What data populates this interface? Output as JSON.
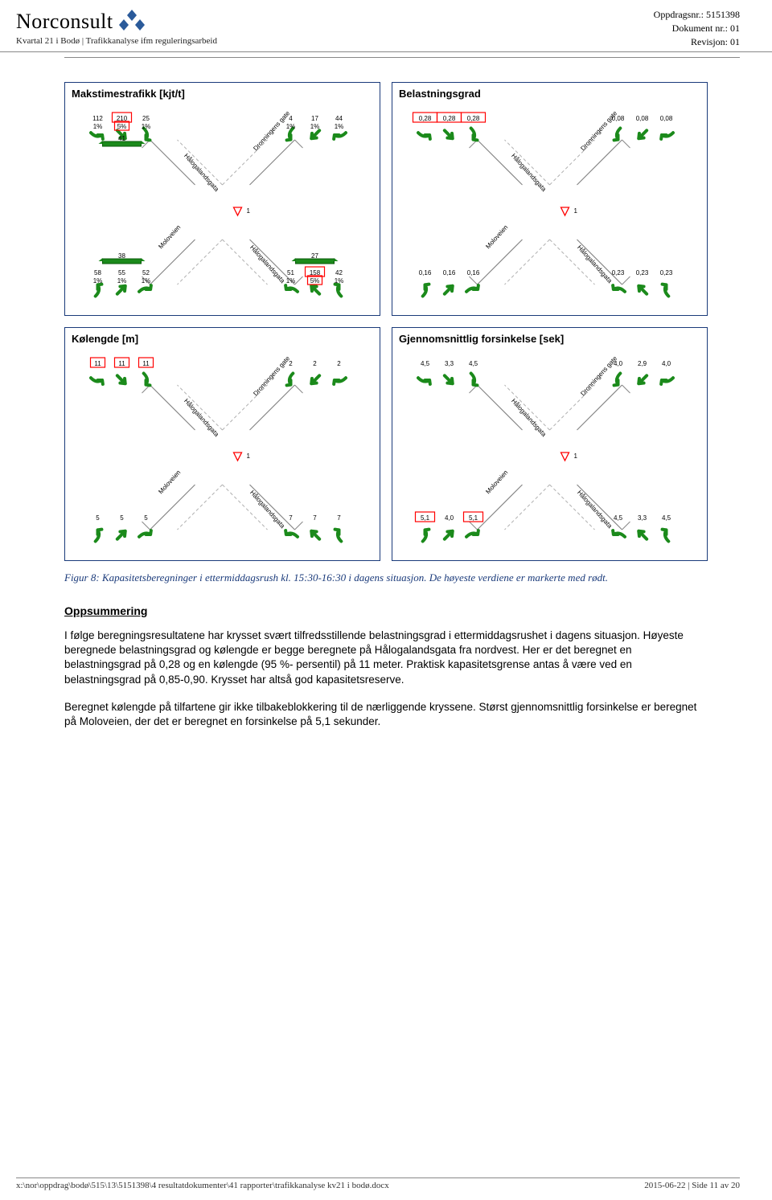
{
  "header": {
    "logo_text": "Norconsult",
    "subtitle": "Kvartal 21 i Bodø | Trafikkanalyse ifm reguleringsarbeid",
    "meta": {
      "oppdrag": "Oppdragsnr.: 5151398",
      "dokument": "Dokument nr.: 01",
      "revisjon": "Revisjon: 01"
    },
    "logo_color": "#2a5a9a"
  },
  "panels": [
    {
      "title": "Makstimestrafikk [kjt/t]",
      "roads": [
        "Hålogalandsgata",
        "Dronningens gate",
        "Moloveien",
        "Hålogalandsgata"
      ],
      "priority": "1",
      "tl": [
        {
          "val": "112",
          "pct": "1%"
        },
        {
          "val": "210",
          "pct": "5%",
          "red": true
        },
        {
          "val": "25",
          "pct": "1%"
        }
      ],
      "tr": [
        {
          "val": "4",
          "pct": "1%"
        },
        {
          "val": "17",
          "pct": "1%"
        },
        {
          "val": "44",
          "pct": "1%"
        }
      ],
      "bl": [
        {
          "val": "58",
          "pct": "1%"
        },
        {
          "val": "55",
          "pct": "1%"
        },
        {
          "val": "52",
          "pct": "1%"
        }
      ],
      "br": [
        {
          "val": "51",
          "pct": "1%"
        },
        {
          "val": "158",
          "pct": "5%",
          "red": true
        },
        {
          "val": "42",
          "pct": "1%"
        }
      ],
      "extra_tl": "41",
      "extra_bl": "38",
      "extra_br": "27"
    },
    {
      "title": "Belastningsgrad",
      "roads": [
        "Hålogalandsgata",
        "Dronningens gate",
        "Moloveien",
        "Hålogalandsgata"
      ],
      "priority": "1",
      "tl": [
        {
          "val": "0,28",
          "red": true
        },
        {
          "val": "0,28",
          "red": true
        },
        {
          "val": "0,28",
          "red": true
        }
      ],
      "tr": [
        {
          "val": "0,08"
        },
        {
          "val": "0,08"
        },
        {
          "val": "0,08"
        }
      ],
      "bl": [
        {
          "val": "0,16"
        },
        {
          "val": "0,16"
        },
        {
          "val": "0,16"
        }
      ],
      "br": [
        {
          "val": "0,23"
        },
        {
          "val": "0,23"
        },
        {
          "val": "0,23"
        }
      ]
    },
    {
      "title": "Kølengde [m]",
      "roads": [
        "Hålogalandsgata",
        "Dronningens gate",
        "Moloveien",
        "Hålogalandsgata"
      ],
      "priority": "1",
      "tl": [
        {
          "val": "11",
          "red": true
        },
        {
          "val": "11",
          "red": true
        },
        {
          "val": "11",
          "red": true
        }
      ],
      "tr": [
        {
          "val": "2"
        },
        {
          "val": "2"
        },
        {
          "val": "2"
        }
      ],
      "bl": [
        {
          "val": "5"
        },
        {
          "val": "5"
        },
        {
          "val": "5"
        }
      ],
      "br": [
        {
          "val": "7"
        },
        {
          "val": "7"
        },
        {
          "val": "7"
        }
      ]
    },
    {
      "title": "Gjennomsnittlig forsinkelse [sek]",
      "roads": [
        "Hålogalandsgata",
        "Dronningens gate",
        "Moloveien",
        "Hålogalandsgata"
      ],
      "priority": "1",
      "tl": [
        {
          "val": "4,5"
        },
        {
          "val": "3,3"
        },
        {
          "val": "4,5"
        }
      ],
      "tr": [
        {
          "val": "4,0"
        },
        {
          "val": "2,9"
        },
        {
          "val": "4,0"
        }
      ],
      "bl": [
        {
          "val": "5,1",
          "red": true
        },
        {
          "val": "4,0"
        },
        {
          "val": "5,1",
          "red": true
        }
      ],
      "br": [
        {
          "val": "4,5"
        },
        {
          "val": "3,3"
        },
        {
          "val": "4,5"
        }
      ]
    }
  ],
  "caption": "Figur 8: Kapasitetsberegninger i ettermiddagsrush kl. 15:30-16:30 i dagens situasjon. De høyeste verdiene er markerte med rødt.",
  "section_title": "Oppsummering",
  "para1": "I følge beregningsresultatene har krysset svært tilfredsstillende belastningsgrad i ettermiddagsrushet i dagens situasjon. Høyeste beregnede belastningsgrad og kølengde er begge beregnete på Hålogalandsgata fra nordvest. Her er det beregnet en belastningsgrad på 0,28 og en kølengde (95 %- persentil) på 11 meter. Praktisk kapasitetsgrense antas å være ved en belastningsgrad på 0,85-0,90. Krysset har altså god kapasitetsreserve.",
  "para2": "Beregnet kølengde på tilfartene gir ikke tilbakeblokkering til de nærliggende kryssene. Størst gjennomsnittlig forsinkelse er beregnet på Moloveien, der det er beregnet en forsinkelse på 5,1 sekunder.",
  "footer": {
    "path": "x:\\nor\\oppdrag\\bodø\\515\\13\\5151398\\4 resultatdokumenter\\41 rapporter\\trafikkanalyse kv21 i bodø.docx",
    "date_page": "2015-06-22 | Side 11 av 20"
  },
  "style": {
    "arrow_fill": "#1b8a1b",
    "arrow_stroke": "#0a5a0a",
    "road_stroke": "#888888",
    "lane_dash": "#b0b0b0",
    "panel_border": "#1a3a7a",
    "red": "#ff0000",
    "priority_stroke": "#ff0000"
  }
}
